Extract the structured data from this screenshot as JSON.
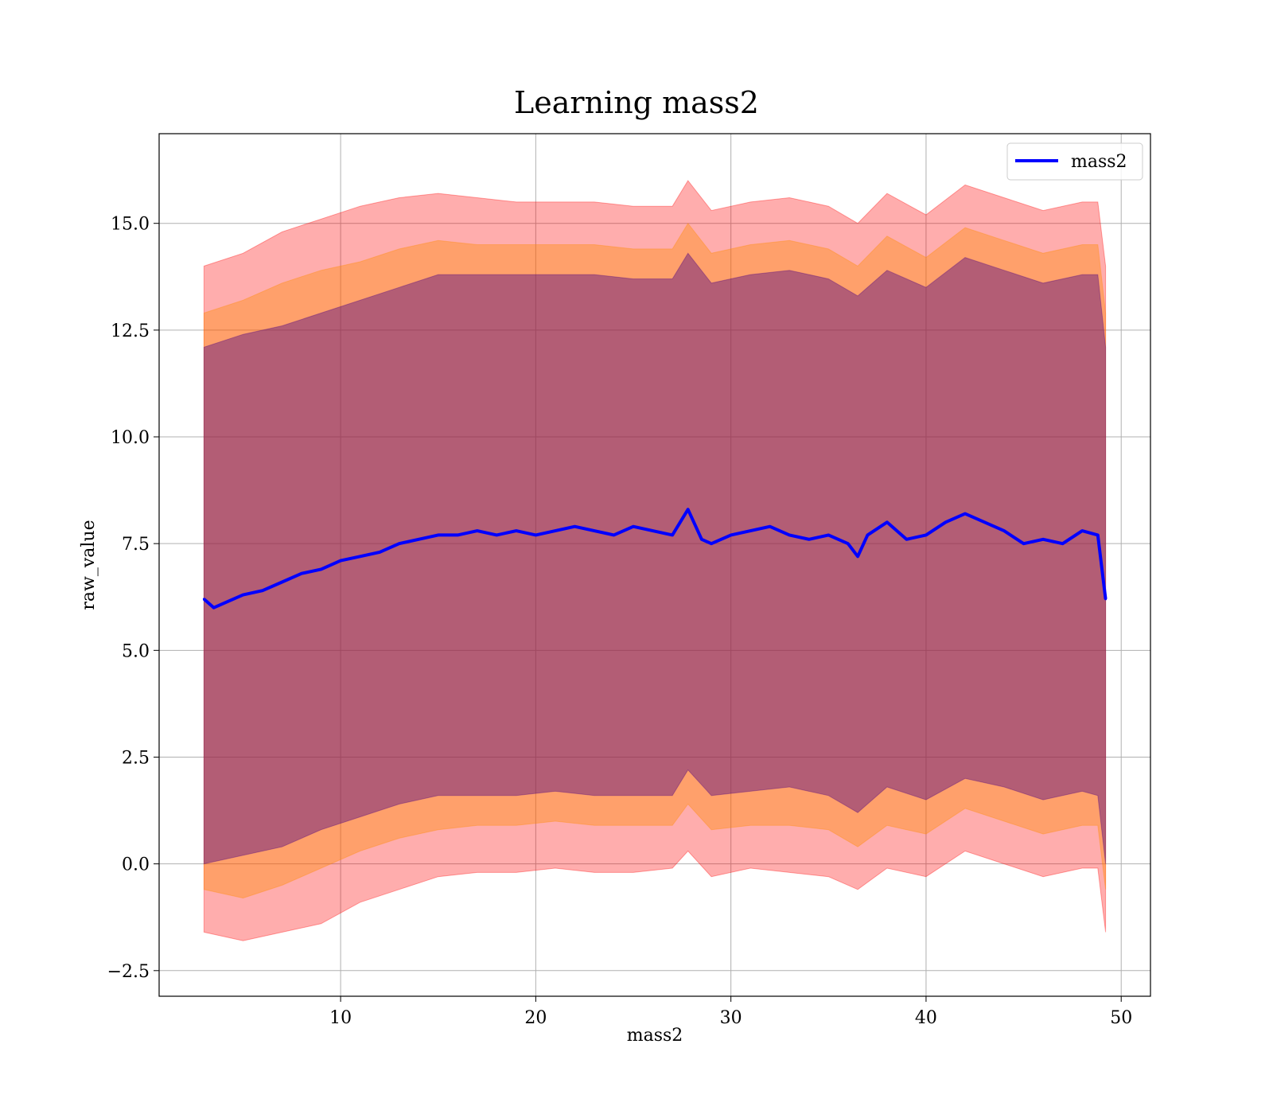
{
  "chart_data": {
    "type": "line",
    "title": "Learning mass2",
    "xlabel": "mass2",
    "ylabel": "raw_value",
    "xlim": [
      0.7,
      51.5
    ],
    "ylim": [
      -3.1,
      17.1
    ],
    "xticks": [
      10,
      20,
      30,
      40,
      50
    ],
    "xtick_labels": [
      "10",
      "20",
      "30",
      "40",
      "50"
    ],
    "yticks": [
      -2.5,
      0.0,
      2.5,
      5.0,
      7.5,
      10.0,
      12.5,
      15.0
    ],
    "ytick_labels": [
      "−2.5",
      "0.0",
      "2.5",
      "5.0",
      "7.5",
      "10.0",
      "12.5",
      "15.0"
    ],
    "grid": true,
    "legend": {
      "position": "top-right",
      "entries": [
        "mass2"
      ]
    },
    "colors": {
      "line": "#0000ff",
      "band_outer": "#ff0000",
      "band_middle": "#ff8c00",
      "band_inner": "#4b0082"
    },
    "series": [
      {
        "name": "mass2",
        "x": [
          3.0,
          3.5,
          4.0,
          5.0,
          6.0,
          7.0,
          8.0,
          9.0,
          10.0,
          11.0,
          12.0,
          13.0,
          14.0,
          15.0,
          16.0,
          17.0,
          18.0,
          19.0,
          20.0,
          21.0,
          22.0,
          23.0,
          24.0,
          25.0,
          26.0,
          27.0,
          27.8,
          28.5,
          29.0,
          30.0,
          31.0,
          32.0,
          33.0,
          34.0,
          35.0,
          36.0,
          36.5,
          37.0,
          38.0,
          39.0,
          40.0,
          41.0,
          42.0,
          43.0,
          44.0,
          45.0,
          46.0,
          47.0,
          48.0,
          48.8,
          49.2
        ],
        "y": [
          6.2,
          6.0,
          6.1,
          6.3,
          6.4,
          6.6,
          6.8,
          6.9,
          7.1,
          7.2,
          7.3,
          7.5,
          7.6,
          7.7,
          7.7,
          7.8,
          7.7,
          7.8,
          7.7,
          7.8,
          7.9,
          7.8,
          7.7,
          7.9,
          7.8,
          7.7,
          8.3,
          7.6,
          7.5,
          7.7,
          7.8,
          7.9,
          7.7,
          7.6,
          7.7,
          7.5,
          7.2,
          7.7,
          8.0,
          7.6,
          7.7,
          8.0,
          8.2,
          8.0,
          7.8,
          7.5,
          7.6,
          7.5,
          7.8,
          7.7,
          6.2
        ]
      }
    ],
    "bands": [
      {
        "x": [
          3.0,
          5.0,
          7.0,
          9.0,
          11.0,
          13.0,
          15.0,
          17.0,
          19.0,
          21.0,
          23.0,
          25.0,
          27.0,
          27.8,
          29.0,
          31.0,
          33.0,
          35.0,
          36.5,
          38.0,
          40.0,
          42.0,
          44.0,
          46.0,
          48.0,
          48.8,
          49.2
        ],
        "lower": [
          -1.6,
          -1.8,
          -1.6,
          -1.4,
          -0.9,
          -0.6,
          -0.3,
          -0.2,
          -0.2,
          -0.1,
          -0.2,
          -0.2,
          -0.1,
          0.3,
          -0.3,
          -0.1,
          -0.2,
          -0.3,
          -0.6,
          -0.1,
          -0.3,
          0.3,
          0.0,
          -0.3,
          -0.1,
          -0.1,
          -1.6
        ],
        "upper": [
          14.0,
          14.3,
          14.8,
          15.1,
          15.4,
          15.6,
          15.7,
          15.6,
          15.5,
          15.5,
          15.5,
          15.4,
          15.4,
          16.0,
          15.3,
          15.5,
          15.6,
          15.4,
          15.0,
          15.7,
          15.2,
          15.9,
          15.6,
          15.3,
          15.5,
          15.5,
          14.0
        ]
      },
      {
        "x": [
          3.0,
          5.0,
          7.0,
          9.0,
          11.0,
          13.0,
          15.0,
          17.0,
          19.0,
          21.0,
          23.0,
          25.0,
          27.0,
          27.8,
          29.0,
          31.0,
          33.0,
          35.0,
          36.5,
          38.0,
          40.0,
          42.0,
          44.0,
          46.0,
          48.0,
          48.8,
          49.2
        ],
        "lower": [
          -0.6,
          -0.8,
          -0.5,
          -0.1,
          0.3,
          0.6,
          0.8,
          0.9,
          0.9,
          1.0,
          0.9,
          0.9,
          0.9,
          1.4,
          0.8,
          0.9,
          0.9,
          0.8,
          0.4,
          0.9,
          0.7,
          1.3,
          1.0,
          0.7,
          0.9,
          0.9,
          -0.6
        ],
        "upper": [
          12.9,
          13.2,
          13.6,
          13.9,
          14.1,
          14.4,
          14.6,
          14.5,
          14.5,
          14.5,
          14.5,
          14.4,
          14.4,
          15.0,
          14.3,
          14.5,
          14.6,
          14.4,
          14.0,
          14.7,
          14.2,
          14.9,
          14.6,
          14.3,
          14.5,
          14.5,
          12.9
        ]
      },
      {
        "x": [
          3.0,
          5.0,
          7.0,
          9.0,
          11.0,
          13.0,
          15.0,
          17.0,
          19.0,
          21.0,
          23.0,
          25.0,
          27.0,
          27.8,
          29.0,
          31.0,
          33.0,
          35.0,
          36.5,
          38.0,
          40.0,
          42.0,
          44.0,
          46.0,
          48.0,
          48.8,
          49.2
        ],
        "lower": [
          0.0,
          0.2,
          0.4,
          0.8,
          1.1,
          1.4,
          1.6,
          1.6,
          1.6,
          1.7,
          1.6,
          1.6,
          1.6,
          2.2,
          1.6,
          1.7,
          1.8,
          1.6,
          1.2,
          1.8,
          1.5,
          2.0,
          1.8,
          1.5,
          1.7,
          1.6,
          0.0
        ],
        "upper": [
          12.1,
          12.4,
          12.6,
          12.9,
          13.2,
          13.5,
          13.8,
          13.8,
          13.8,
          13.8,
          13.8,
          13.7,
          13.7,
          14.3,
          13.6,
          13.8,
          13.9,
          13.7,
          13.3,
          13.9,
          13.5,
          14.2,
          13.9,
          13.6,
          13.8,
          13.8,
          12.1
        ]
      }
    ]
  }
}
